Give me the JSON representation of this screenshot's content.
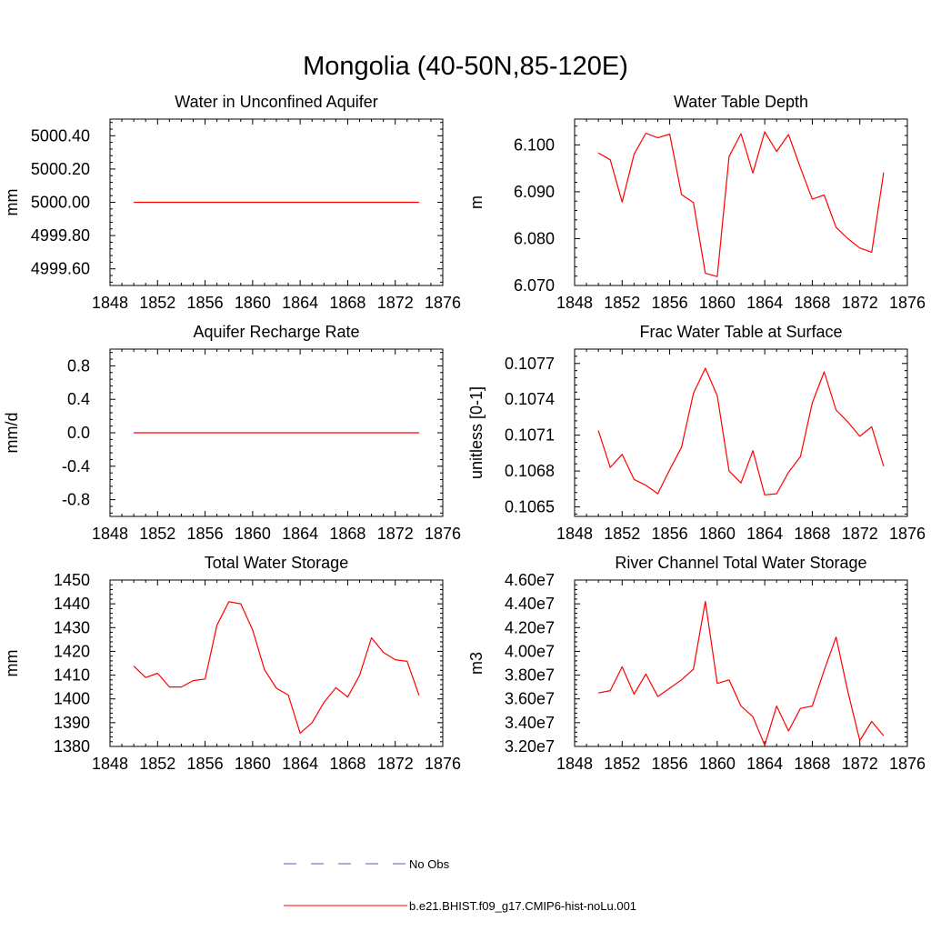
{
  "figure_title": "Mongolia (40-50N,85-120E)",
  "colors": {
    "model": "#ff0000",
    "obs": "#5a5ac8",
    "axis": "#000000"
  },
  "legend": [
    {
      "label": "No Obs",
      "style": "dashed",
      "color": "#5a5ac8"
    },
    {
      "label": "b.e21.BHIST.f09_g17.CMIP6-hist-noLu.001",
      "style": "solid",
      "color": "#ff0000"
    }
  ],
  "chart_data": [
    {
      "type": "line",
      "title": "Water in Unconfined Aquifer",
      "xlabel": "",
      "ylabel": "mm",
      "xlim": [
        1848,
        1876
      ],
      "ylim": [
        4999.5,
        5000.5
      ],
      "xticks": [
        1848,
        1852,
        1856,
        1860,
        1864,
        1868,
        1872,
        1876
      ],
      "xtick_labels": [
        "1848",
        "1852",
        "1856",
        "1860",
        "1864",
        "1868",
        "1872",
        "1876"
      ],
      "yticks": [
        4999.6,
        4999.8,
        5000.0,
        5000.2,
        5000.4
      ],
      "ytick_labels": [
        "4999.60",
        "4999.80",
        "5000.00",
        "5000.20",
        "5000.40"
      ],
      "x": [
        1850,
        1851,
        1852,
        1853,
        1854,
        1855,
        1856,
        1857,
        1858,
        1859,
        1860,
        1861,
        1862,
        1863,
        1864,
        1865,
        1866,
        1867,
        1868,
        1869,
        1870,
        1871,
        1872,
        1873,
        1874
      ],
      "series": [
        {
          "name": "b.e21.BHIST.f09_g17.CMIP6-hist-noLu.001",
          "values": [
            5000,
            5000,
            5000,
            5000,
            5000,
            5000,
            5000,
            5000,
            5000,
            5000,
            5000,
            5000,
            5000,
            5000,
            5000,
            5000,
            5000,
            5000,
            5000,
            5000,
            5000,
            5000,
            5000,
            5000,
            5000
          ]
        }
      ]
    },
    {
      "type": "line",
      "title": "Water Table Depth",
      "xlabel": "",
      "ylabel": "m",
      "xlim": [
        1848,
        1876
      ],
      "ylim": [
        6.07,
        6.1055
      ],
      "xticks": [
        1848,
        1852,
        1856,
        1860,
        1864,
        1868,
        1872,
        1876
      ],
      "xtick_labels": [
        "1848",
        "1852",
        "1856",
        "1860",
        "1864",
        "1868",
        "1872",
        "1876"
      ],
      "yticks": [
        6.07,
        6.08,
        6.09,
        6.1
      ],
      "ytick_labels": [
        "6.070",
        "6.080",
        "6.090",
        "6.100"
      ],
      "x": [
        1850,
        1851,
        1852,
        1853,
        1854,
        1855,
        1856,
        1857,
        1858,
        1859,
        1860,
        1861,
        1862,
        1863,
        1864,
        1865,
        1866,
        1867,
        1868,
        1869,
        1870,
        1871,
        1872,
        1873,
        1874
      ],
      "series": [
        {
          "name": "b.e21.BHIST.f09_g17.CMIP6-hist-noLu.001",
          "values": [
            6.0983,
            6.0968,
            6.0878,
            6.098,
            6.1025,
            6.1015,
            6.1023,
            6.0894,
            6.0877,
            6.0726,
            6.0719,
            6.0975,
            6.1024,
            6.094,
            6.1028,
            6.0986,
            6.1022,
            6.0951,
            6.0884,
            6.0893,
            6.0824,
            6.08,
            6.078,
            6.0771,
            6.0941
          ]
        }
      ]
    },
    {
      "type": "line",
      "title": "Aquifer Recharge Rate",
      "xlabel": "",
      "ylabel": "mm/d",
      "xlim": [
        1848,
        1876
      ],
      "ylim": [
        -1.0,
        1.0
      ],
      "xticks": [
        1848,
        1852,
        1856,
        1860,
        1864,
        1868,
        1872,
        1876
      ],
      "xtick_labels": [
        "1848",
        "1852",
        "1856",
        "1860",
        "1864",
        "1868",
        "1872",
        "1876"
      ],
      "yticks": [
        -0.8,
        -0.4,
        0.0,
        0.4,
        0.8
      ],
      "ytick_labels": [
        "-0.8",
        "-0.4",
        "0.0",
        "0.4",
        "0.8"
      ],
      "x": [
        1850,
        1851,
        1852,
        1853,
        1854,
        1855,
        1856,
        1857,
        1858,
        1859,
        1860,
        1861,
        1862,
        1863,
        1864,
        1865,
        1866,
        1867,
        1868,
        1869,
        1870,
        1871,
        1872,
        1873,
        1874
      ],
      "series": [
        {
          "name": "b.e21.BHIST.f09_g17.CMIP6-hist-noLu.001",
          "values": [
            0,
            0,
            0,
            0,
            0,
            0,
            0,
            0,
            0,
            0,
            0,
            0,
            0,
            0,
            0,
            0,
            0,
            0,
            0,
            0,
            0,
            0,
            0,
            0,
            0
          ]
        }
      ]
    },
    {
      "type": "line",
      "title": "Frac Water Table at Surface",
      "xlabel": "",
      "ylabel": "unitless [0-1]",
      "xlim": [
        1848,
        1876
      ],
      "ylim": [
        0.10642,
        0.10782
      ],
      "xticks": [
        1848,
        1852,
        1856,
        1860,
        1864,
        1868,
        1872,
        1876
      ],
      "xtick_labels": [
        "1848",
        "1852",
        "1856",
        "1860",
        "1864",
        "1868",
        "1872",
        "1876"
      ],
      "yticks": [
        0.1065,
        0.1068,
        0.1071,
        0.1074,
        0.1077
      ],
      "ytick_labels": [
        "0.1065",
        "0.1068",
        "0.1071",
        "0.1074",
        "0.1077"
      ],
      "x": [
        1850,
        1851,
        1852,
        1853,
        1854,
        1855,
        1856,
        1857,
        1858,
        1859,
        1860,
        1861,
        1862,
        1863,
        1864,
        1865,
        1866,
        1867,
        1868,
        1869,
        1870,
        1871,
        1872,
        1873,
        1874
      ],
      "series": [
        {
          "name": "b.e21.BHIST.f09_g17.CMIP6-hist-noLu.001",
          "values": [
            0.10714,
            0.10683,
            0.10694,
            0.10673,
            0.10668,
            0.10661,
            0.10681,
            0.107,
            0.10745,
            0.10766,
            0.10743,
            0.1068,
            0.1067,
            0.10697,
            0.1066,
            0.10661,
            0.10679,
            0.10692,
            0.10737,
            0.10763,
            0.10731,
            0.10721,
            0.10709,
            0.10717,
            0.10684
          ]
        }
      ]
    },
    {
      "type": "line",
      "title": "Total Water Storage",
      "xlabel": "",
      "ylabel": "mm",
      "xlim": [
        1848,
        1876
      ],
      "ylim": [
        1380,
        1450
      ],
      "xticks": [
        1848,
        1852,
        1856,
        1860,
        1864,
        1868,
        1872,
        1876
      ],
      "xtick_labels": [
        "1848",
        "1852",
        "1856",
        "1860",
        "1864",
        "1868",
        "1872",
        "1876"
      ],
      "yticks": [
        1380,
        1390,
        1400,
        1410,
        1420,
        1430,
        1440,
        1450
      ],
      "ytick_labels": [
        "1380",
        "1390",
        "1400",
        "1410",
        "1420",
        "1430",
        "1440",
        "1450"
      ],
      "x": [
        1850,
        1851,
        1852,
        1853,
        1854,
        1855,
        1856,
        1857,
        1858,
        1859,
        1860,
        1861,
        1862,
        1863,
        1864,
        1865,
        1866,
        1867,
        1868,
        1869,
        1870,
        1871,
        1872,
        1873,
        1874
      ],
      "series": [
        {
          "name": "b.e21.BHIST.f09_g17.CMIP6-hist-noLu.001",
          "values": [
            1413.8,
            1409,
            1410.8,
            1405,
            1405,
            1407.7,
            1408.4,
            1431,
            1440.9,
            1440,
            1429,
            1412.3,
            1404.5,
            1401.6,
            1385.6,
            1390,
            1398.5,
            1404.7,
            1400.8,
            1409.9,
            1425.7,
            1419.6,
            1416.5,
            1415.8,
            1401.5
          ]
        }
      ]
    },
    {
      "type": "line",
      "title": "River Channel Total Water Storage",
      "xlabel": "",
      "ylabel": "m3",
      "xlim": [
        1848,
        1876
      ],
      "ylim": [
        32000000,
        46000000
      ],
      "xticks": [
        1848,
        1852,
        1856,
        1860,
        1864,
        1868,
        1872,
        1876
      ],
      "xtick_labels": [
        "1848",
        "1852",
        "1856",
        "1860",
        "1864",
        "1868",
        "1872",
        "1876"
      ],
      "yticks": [
        32000000,
        34000000,
        36000000,
        38000000,
        40000000,
        42000000,
        44000000,
        46000000
      ],
      "ytick_labels": [
        "3.20e7",
        "3.40e7",
        "3.60e7",
        "3.80e7",
        "4.00e7",
        "4.20e7",
        "4.40e7",
        "4.60e7"
      ],
      "x": [
        1850,
        1851,
        1852,
        1853,
        1854,
        1855,
        1856,
        1857,
        1858,
        1859,
        1860,
        1861,
        1862,
        1863,
        1864,
        1865,
        1866,
        1867,
        1868,
        1869,
        1870,
        1871,
        1872,
        1873,
        1874
      ],
      "series": [
        {
          "name": "b.e21.BHIST.f09_g17.CMIP6-hist-noLu.001",
          "values": [
            36500000,
            36700000,
            38700000,
            36400000,
            38100000,
            36200000,
            36900000,
            37600000,
            38500000,
            44200000,
            37300000,
            37600000,
            35400000,
            34500000,
            32100000,
            35400000,
            33300000,
            35200000,
            35400000,
            38400000,
            41200000,
            36600000,
            32500000,
            34100000,
            32900000
          ]
        }
      ]
    }
  ]
}
